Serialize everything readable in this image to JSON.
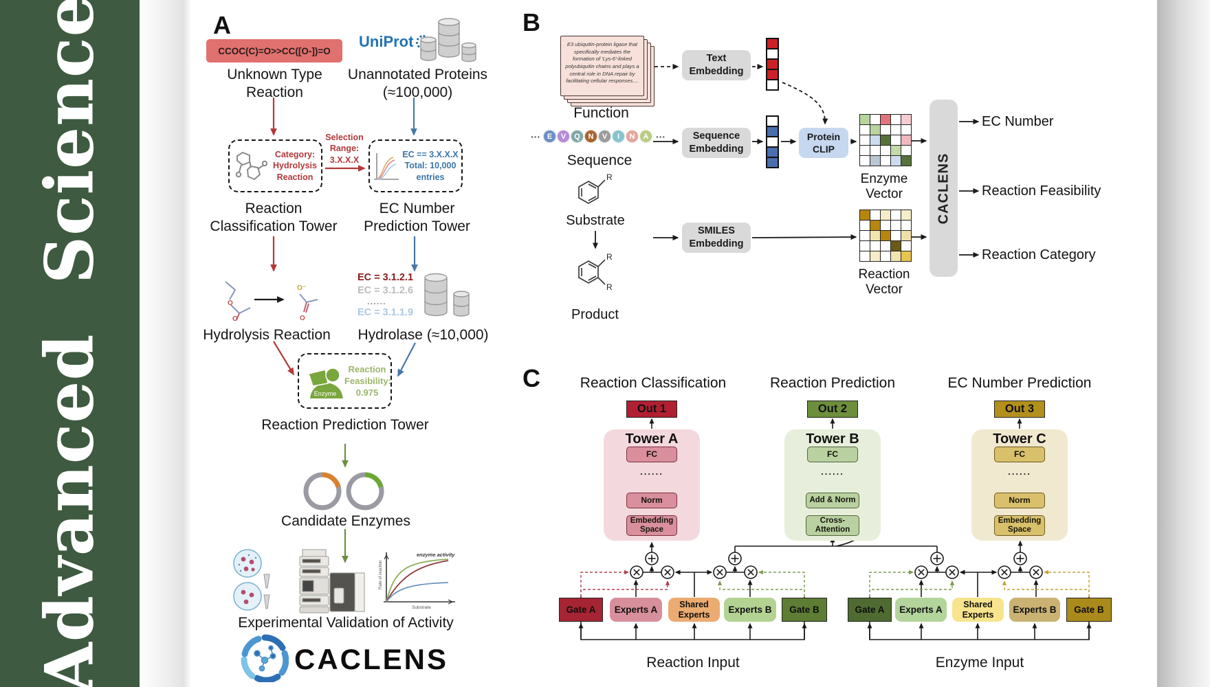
{
  "journal": {
    "name": "Advanced  Science"
  },
  "panelA": {
    "label": "A",
    "smiles": "CCOC(C)=O>>CC([O-])=O",
    "unknown_reaction": "Unknown Type Reaction",
    "uniprot": "UniProt",
    "unannotated_proteins": "Unannotated Proteins (≈100,000)",
    "classification_box": "Category:\nHydrolysis\nReaction",
    "selection_range": "Selection\nRange:\n3.X.X.X",
    "ec_box": "EC == 3.X.X.X\nTotal: 10,000\nentries",
    "tower_classification": "Reaction Classification Tower",
    "tower_ec": "EC Number Prediction Tower",
    "hydrolysis_reaction": "Hydrolysis Reaction",
    "ec_list": [
      "EC = 3.1.2.1",
      "EC = 3.1.2.6",
      "......",
      "EC = 3.1.1.9"
    ],
    "hydrolase": "Hydrolase (≈10,000)",
    "enzyme_label": "Enzyme",
    "feasibility": "Reaction\nFeasibility:\n0.975",
    "tower_prediction": "Reaction Prediction Tower",
    "candidate_enzymes": "Candidate Enzymes",
    "validation": "Experimental Validation of Activity",
    "activity_plot": {
      "ylabel": "Rate of reaction",
      "xlabel": "Substrate",
      "annotation": "enzyme activity"
    },
    "logo_text": "CACLENS"
  },
  "panelB": {
    "label": "B",
    "function_card": "E3 ubiquitin-protein ligase that specifically mediates the formation of 'Lys-6'-linked polyubiquitin chains and plays a central role in DNA repair by facilitating cellular responses....",
    "function_label": "Function",
    "ellipsis": "···",
    "residues": [
      {
        "letter": "E",
        "color": "#6e8fc4"
      },
      {
        "letter": "V",
        "color": "#b48cd9"
      },
      {
        "letter": "Q",
        "color": "#7fa8a8"
      },
      {
        "letter": "N",
        "color": "#a9622d"
      },
      {
        "letter": "V",
        "color": "#9b9b9b"
      },
      {
        "letter": "I",
        "color": "#86c5cf"
      },
      {
        "letter": "N",
        "color": "#e2a79c"
      },
      {
        "letter": "A",
        "color": "#b9cc84"
      }
    ],
    "sequence_label": "Sequence",
    "substrate_label": "Substrate",
    "product_label": "Product",
    "r_label": "R",
    "text_embedding": "Text\nEmbedding",
    "sequence_embedding": "Sequence\nEmbedding",
    "smiles_embedding": "SMILES\nEmbedding",
    "protein_clip": "Protein\nCLIP",
    "caclens_bar": "CACLENS",
    "enzyme_vector_label": "Enzyme Vector",
    "reaction_vector_label": "Reaction Vector",
    "outputs": [
      "EC Number",
      "Reaction Feasibility",
      "Reaction Category"
    ],
    "text_vector": [
      "#cc2127",
      "#ffffff",
      "#cc2127",
      "#cc2127",
      "#ffffff"
    ],
    "sequence_vector": [
      "#ffffff",
      "#4a6fae",
      "#ffffff",
      "#4a6fae",
      "#4a6fae"
    ],
    "enzyme_matrix": [
      "#b8d69c",
      "#ffffff",
      "#e2757b",
      "#ffffff",
      "#f6ccd2",
      "#ffffff",
      "#b8d69c",
      "#ffffff",
      "#ffffff",
      "#ffffff",
      "#ffffff",
      "#ccdcee",
      "#57713a",
      "#ffffff",
      "#f0b9bd",
      "#ffffff",
      "#ffffff",
      "#ffffff",
      "#c2dba8",
      "#ffffff",
      "#ffffff",
      "#b9c6d4",
      "#ffffff",
      "#ccdcee",
      "#57713a"
    ],
    "reaction_matrix": [
      "#b8860f",
      "#ffffff",
      "#f6edc8",
      "#ffffff",
      "#f6edc8",
      "#ffffff",
      "#b8860f",
      "#ffffff",
      "#ffffff",
      "#ffffff",
      "#ffffff",
      "#f2e4ae",
      "#b8860f",
      "#ffffff",
      "#f0dfa6",
      "#ffffff",
      "#ffffff",
      "#ffffff",
      "#6d5a17",
      "#ffffff",
      "#ffffff",
      "#f6edc8",
      "#ffffff",
      "#f2e4ae",
      "#e6c44f"
    ]
  },
  "panelC": {
    "label": "C",
    "titles": [
      "Reaction Classification",
      "Reaction Prediction",
      "EC Number Prediction"
    ],
    "towers": [
      {
        "out": "Out 1",
        "name": "Tower A",
        "fc": "FC",
        "dots": "......",
        "mid": "Norm",
        "bottom": "Embedding\nSpace"
      },
      {
        "out": "Out 2",
        "name": "Tower B",
        "fc": "FC",
        "dots": "......",
        "mid": "Add & Norm",
        "bottom": "Cross-\nAttention"
      },
      {
        "out": "Out 3",
        "name": "Tower C",
        "fc": "FC",
        "dots": "......",
        "mid": "Norm",
        "bottom": "Embedding\nSpace"
      }
    ],
    "groups": [
      {
        "gate_a": "Gate A",
        "experts_a": "Experts A",
        "shared": "Shared\nExperts",
        "experts_b": "Experts B",
        "gate_b": "Gate B",
        "input": "Reaction Input"
      },
      {
        "gate_a": "Gate A",
        "experts_a": "Experts A",
        "shared": "Shared\nExperts",
        "experts_b": "Experts B",
        "gate_b": "Gate B",
        "input": "Enzyme Input"
      }
    ]
  }
}
